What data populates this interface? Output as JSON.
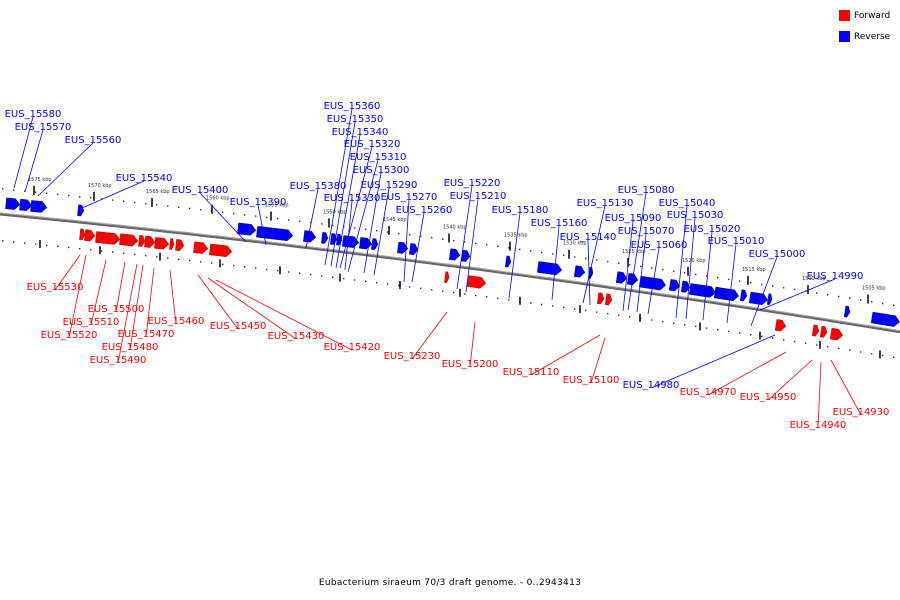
{
  "legend": {
    "items": [
      {
        "label": "Forward",
        "color": "#ff0000"
      },
      {
        "label": "Reverse",
        "color": "#0000ff"
      }
    ]
  },
  "caption": "Eubacterium siraeum 70/3 draft genome. - 0..2943413",
  "colors": {
    "forward": "#ff0000",
    "reverse": "#0000ff",
    "axis": "#777777"
  },
  "scale_labels": [
    "1575 kbp",
    "1570 kbp",
    "1565 kbp",
    "1560 kbp",
    "1555 kbp",
    "1550 kbp",
    "1545 kbp",
    "1540 kbp",
    "1535 kbp",
    "1530 kbp",
    "1525 kbp",
    "1520 kbp",
    "1515 kbp",
    "1510 kbp",
    "1505 kbp"
  ],
  "reverse_genes": [
    "EUS_15580",
    "EUS_15570",
    "EUS_15560",
    "EUS_15540",
    "EUS_15400",
    "EUS_15390",
    "EUS_15380",
    "EUS_15360",
    "EUS_15350",
    "EUS_15340",
    "EUS_15330",
    "EUS_15320",
    "EUS_15310",
    "EUS_15300",
    "EUS_15290",
    "EUS_15270",
    "EUS_15260",
    "EUS_15220",
    "EUS_15210",
    "EUS_15180",
    "EUS_15160",
    "EUS_15140",
    "EUS_15130",
    "EUS_15090",
    "EUS_15080",
    "EUS_15070",
    "EUS_15060",
    "EUS_15040",
    "EUS_15030",
    "EUS_15020",
    "EUS_15010",
    "EUS_15000",
    "EUS_14990",
    "EUS_14980"
  ],
  "forward_genes": [
    "EUS_15530",
    "EUS_15520",
    "EUS_15510",
    "EUS_15500",
    "EUS_15490",
    "EUS_15480",
    "EUS_15470",
    "EUS_15460",
    "EUS_15450",
    "EUS_15430",
    "EUS_15420",
    "EUS_15230",
    "EUS_15200",
    "EUS_15110",
    "EUS_15100",
    "EUS_14970",
    "EUS_14950",
    "EUS_14940",
    "EUS_14930"
  ]
}
